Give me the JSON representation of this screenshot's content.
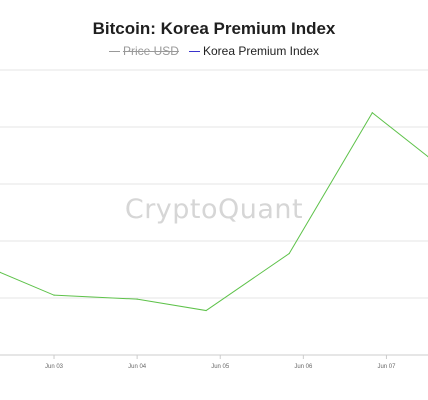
{
  "chart_data": {
    "type": "line",
    "title": "Bitcoin: Korea Premium Index",
    "legend": [
      {
        "name": "Price USD",
        "color": "#999999",
        "hidden": true
      },
      {
        "name": "Korea Premium Index",
        "color": "#3a33cc",
        "hidden": false
      }
    ],
    "categories": [
      "Jun 03",
      "Jun 04",
      "Jun 05",
      "Jun 06",
      "Jun 07"
    ],
    "series": [
      {
        "name": "Korea Premium Index",
        "color": "#5ec24a",
        "x": [
          2.35,
          3.0,
          4.0,
          4.83,
          5.83,
          6.83,
          7.5
        ],
        "y": [
          1.45,
          1.05,
          0.98,
          0.78,
          1.78,
          4.25,
          3.48
        ]
      }
    ],
    "ylim": [
      0,
      5
    ],
    "xlim": [
      2.35,
      7.5
    ],
    "grid": true,
    "legend_position": "top-center"
  },
  "watermark": "CryptoQuant"
}
